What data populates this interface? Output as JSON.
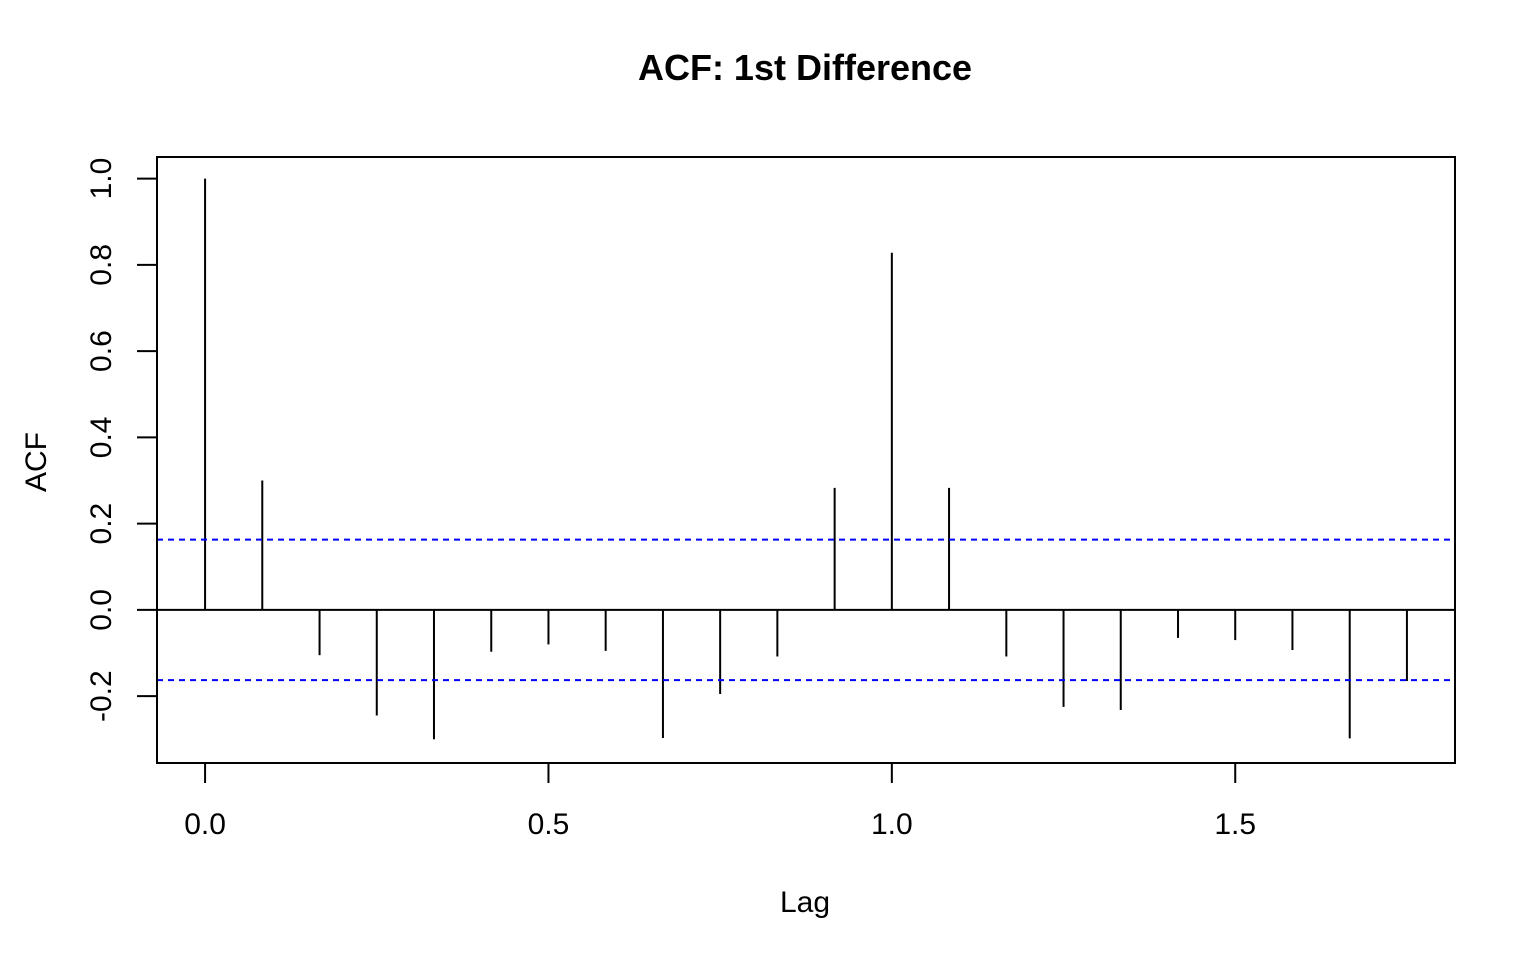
{
  "chart_data": {
    "type": "bar",
    "title": "ACF: 1st Difference",
    "xlabel": "Lag",
    "ylabel": "ACF",
    "x": [
      0.0,
      0.0833,
      0.1667,
      0.25,
      0.3333,
      0.4167,
      0.5,
      0.5833,
      0.6667,
      0.75,
      0.8333,
      0.9167,
      1.0,
      1.0833,
      1.1667,
      1.25,
      1.3333,
      1.4167,
      1.5,
      1.5833,
      1.6667,
      1.75
    ],
    "values": [
      1.0,
      0.3,
      -0.105,
      -0.245,
      -0.3,
      -0.097,
      -0.08,
      -0.095,
      -0.297,
      -0.195,
      -0.108,
      0.283,
      0.828,
      0.283,
      -0.108,
      -0.225,
      -0.232,
      -0.065,
      -0.07,
      -0.093,
      -0.298,
      -0.165
    ],
    "conf_limit": 0.163,
    "xlim": [
      -0.07,
      1.82
    ],
    "ylim": [
      -0.355,
      1.05
    ],
    "x_ticks": [
      "0.0",
      "0.5",
      "1.0",
      "1.5"
    ],
    "y_ticks": [
      "-0.2",
      "0.0",
      "0.2",
      "0.4",
      "0.6",
      "0.8",
      "1.0"
    ],
    "grid": false,
    "colors": {
      "bars": "#000000",
      "conf_lines": "#0000ff",
      "zero_line": "#000000"
    }
  }
}
